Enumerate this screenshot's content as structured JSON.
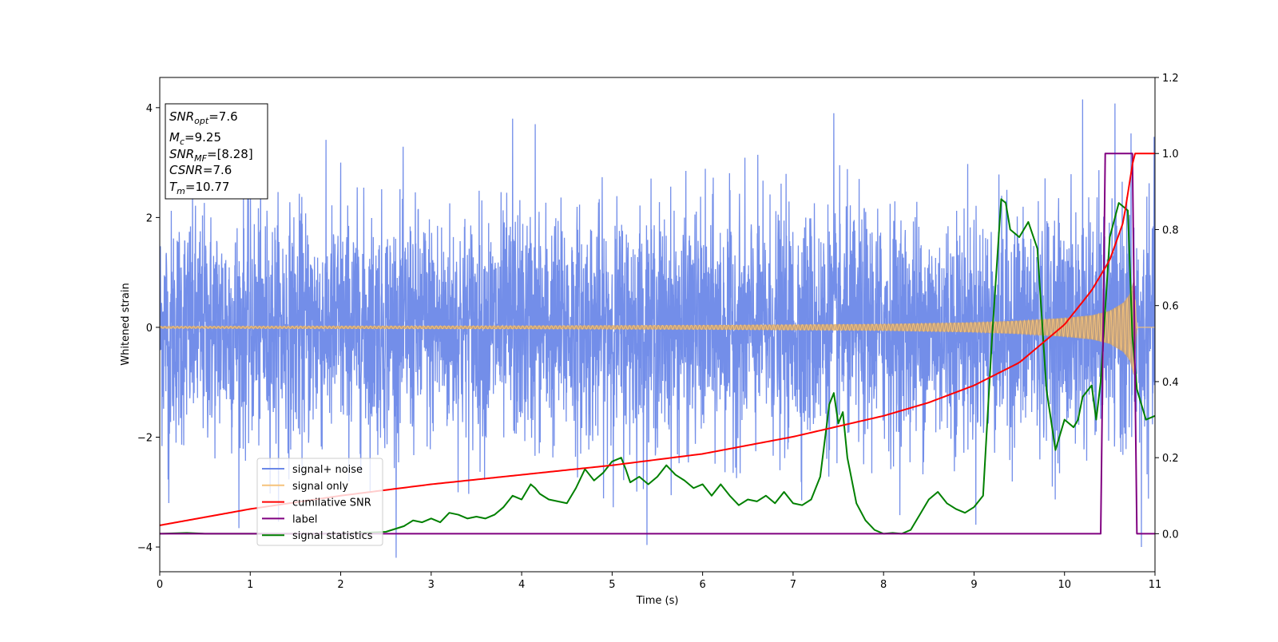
{
  "chart_data": {
    "type": "line",
    "title": "",
    "xlabel": "Time (s)",
    "ylabel": "Whitened strain",
    "xlim": [
      0,
      11
    ],
    "ylim_left": [
      -4.45,
      4.55
    ],
    "ylim_right": [
      -0.1,
      1.2
    ],
    "x_ticks": [
      "0",
      "1",
      "2",
      "3",
      "4",
      "5",
      "6",
      "7",
      "8",
      "9",
      "10",
      "11"
    ],
    "y_left_ticks": [
      "−4",
      "−2",
      "0",
      "2",
      "4"
    ],
    "y_left_tick_values": [
      -4,
      -2,
      0,
      2,
      4
    ],
    "y_right_ticks": [
      "0.0",
      "0.2",
      "0.4",
      "0.6",
      "0.8",
      "1.0",
      "1.2"
    ],
    "y_right_tick_values": [
      0,
      0.2,
      0.4,
      0.6,
      0.8,
      1.0,
      1.2
    ],
    "grid": false,
    "legend_position": "lower-left",
    "annotation_box": {
      "lines": [
        {
          "symbol": "SNR",
          "sub": "opt",
          "value": "=7.6"
        },
        {
          "symbol": "M",
          "sub": "c",
          "value": "=9.25"
        },
        {
          "symbol": "SNR",
          "sub": "MF",
          "value": "=[8.28]"
        },
        {
          "symbol": "CSNR",
          "sub": "",
          "value": "=7.6"
        },
        {
          "symbol": "T",
          "sub": "m",
          "value": "=10.77"
        }
      ]
    },
    "series": [
      {
        "name": "signal+ noise",
        "axis": "left",
        "color": "#6b88e8",
        "kind": "noise band",
        "sample_rate_hz": 400,
        "amplitude_envelope_sigma": 1.05,
        "peak_points": {
          "x": [
            0.1,
            2.0,
            3.9,
            4.15,
            7.45,
            10.2,
            10.85
          ],
          "y": [
            -3.2,
            3.0,
            3.8,
            3.7,
            3.9,
            4.15,
            -4.0
          ]
        }
      },
      {
        "name": "signal only",
        "axis": "left",
        "color": "#f5c27a",
        "kind": "chirp",
        "envelope": {
          "x": [
            0,
            2,
            4,
            6,
            8,
            9,
            9.5,
            10,
            10.3,
            10.5,
            10.65,
            10.72,
            10.77,
            10.8,
            11
          ],
          "y": [
            0.02,
            0.025,
            0.03,
            0.04,
            0.06,
            0.09,
            0.12,
            0.17,
            0.22,
            0.3,
            0.45,
            0.6,
            0.9,
            0.0,
            0.0
          ]
        }
      },
      {
        "name": "cumilative SNR",
        "axis": "right",
        "color": "#ff0000",
        "x": [
          0,
          1,
          2,
          3,
          4,
          5,
          6,
          7,
          8,
          8.5,
          9,
          9.5,
          10,
          10.3,
          10.5,
          10.65,
          10.77,
          11
        ],
        "y": [
          0.022,
          0.065,
          0.1,
          0.13,
          0.155,
          0.18,
          0.21,
          0.255,
          0.31,
          0.345,
          0.39,
          0.45,
          0.55,
          0.64,
          0.72,
          0.82,
          1.0,
          1.0
        ]
      },
      {
        "name": "label",
        "axis": "right",
        "color": "#800080",
        "x": [
          0,
          10.4,
          10.45,
          10.75,
          10.8,
          11
        ],
        "y": [
          0,
          0,
          1,
          1,
          0,
          0
        ]
      },
      {
        "name": "signal statistics",
        "axis": "right",
        "color": "#008000",
        "x": [
          0,
          0.3,
          0.5,
          1,
          1.5,
          2,
          2.5,
          2.7,
          2.8,
          2.9,
          3.0,
          3.1,
          3.2,
          3.3,
          3.4,
          3.5,
          3.6,
          3.7,
          3.8,
          3.9,
          4.0,
          4.1,
          4.15,
          4.2,
          4.3,
          4.4,
          4.5,
          4.6,
          4.7,
          4.8,
          4.9,
          5.0,
          5.1,
          5.15,
          5.2,
          5.3,
          5.4,
          5.5,
          5.6,
          5.7,
          5.8,
          5.9,
          6.0,
          6.1,
          6.2,
          6.3,
          6.4,
          6.5,
          6.6,
          6.7,
          6.8,
          6.9,
          7.0,
          7.1,
          7.2,
          7.3,
          7.4,
          7.45,
          7.5,
          7.55,
          7.6,
          7.7,
          7.8,
          7.9,
          8.0,
          8.1,
          8.2,
          8.3,
          8.4,
          8.5,
          8.6,
          8.7,
          8.8,
          8.9,
          9.0,
          9.1,
          9.2,
          9.3,
          9.35,
          9.4,
          9.5,
          9.6,
          9.7,
          9.8,
          9.9,
          10.0,
          10.1,
          10.15,
          10.2,
          10.3,
          10.35,
          10.4,
          10.45,
          10.5,
          10.6,
          10.7,
          10.75,
          10.8,
          10.9,
          11.0
        ],
        "y": [
          0.0,
          0.002,
          0.0,
          0.0,
          0.0,
          0.0,
          0.005,
          0.02,
          0.035,
          0.03,
          0.04,
          0.03,
          0.055,
          0.05,
          0.04,
          0.045,
          0.04,
          0.05,
          0.07,
          0.1,
          0.09,
          0.13,
          0.12,
          0.105,
          0.09,
          0.085,
          0.08,
          0.12,
          0.17,
          0.14,
          0.16,
          0.19,
          0.2,
          0.17,
          0.135,
          0.15,
          0.13,
          0.15,
          0.18,
          0.155,
          0.14,
          0.12,
          0.13,
          0.1,
          0.13,
          0.1,
          0.075,
          0.09,
          0.085,
          0.1,
          0.08,
          0.11,
          0.08,
          0.075,
          0.09,
          0.15,
          0.34,
          0.37,
          0.29,
          0.32,
          0.2,
          0.08,
          0.035,
          0.01,
          0.0,
          0.002,
          0.0,
          0.01,
          0.05,
          0.09,
          0.11,
          0.08,
          0.065,
          0.055,
          0.07,
          0.1,
          0.52,
          0.88,
          0.87,
          0.8,
          0.78,
          0.82,
          0.75,
          0.38,
          0.22,
          0.3,
          0.28,
          0.3,
          0.36,
          0.39,
          0.3,
          0.4,
          0.59,
          0.78,
          0.87,
          0.85,
          0.52,
          0.38,
          0.3,
          0.31
        ]
      }
    ]
  }
}
